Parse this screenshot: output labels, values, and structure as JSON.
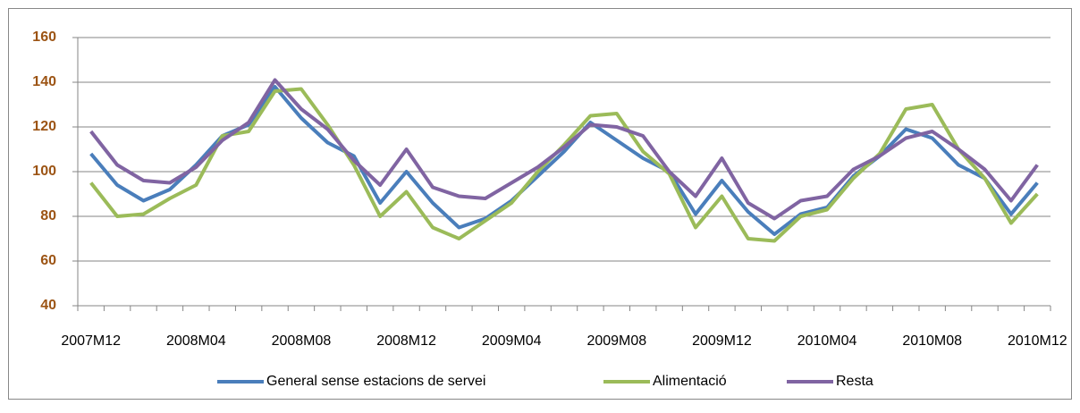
{
  "chart_data": {
    "type": "line",
    "categories": [
      "2007M12",
      null,
      null,
      null,
      "2008M04",
      null,
      null,
      null,
      "2008M08",
      null,
      null,
      null,
      "2008M12",
      null,
      null,
      null,
      "2009M04",
      null,
      null,
      null,
      "2009M08",
      null,
      null,
      null,
      "2009M12",
      null,
      null,
      null,
      "2010M04",
      null,
      null,
      null,
      "2010M08",
      null,
      null,
      null,
      "2010M12"
    ],
    "series": [
      {
        "name": "General sense estacions de servei",
        "color": "#4a7ebb",
        "values": [
          108,
          94,
          87,
          92,
          103,
          116,
          121,
          138,
          124,
          113,
          107,
          86,
          100,
          86,
          75,
          79,
          87,
          98,
          109,
          122,
          114,
          106,
          100,
          81,
          96,
          82,
          72,
          81,
          84,
          98,
          107,
          119,
          115,
          103,
          97,
          81,
          95
        ]
      },
      {
        "name": "Alimentació",
        "color": "#9bbb59",
        "values": [
          95,
          80,
          81,
          88,
          94,
          116,
          118,
          136,
          137,
          121,
          103,
          80,
          91,
          75,
          70,
          78,
          86,
          100,
          112,
          125,
          126,
          109,
          99,
          75,
          89,
          70,
          69,
          80,
          83,
          97,
          108,
          128,
          130,
          110,
          97,
          77,
          90
        ]
      },
      {
        "name": "Resta",
        "color": "#8064a2",
        "values": [
          118,
          103,
          96,
          95,
          102,
          114,
          122,
          141,
          128,
          119,
          105,
          94,
          110,
          93,
          89,
          88,
          95,
          102,
          111,
          121,
          120,
          116,
          100,
          89,
          106,
          86,
          79,
          87,
          89,
          101,
          107,
          115,
          118,
          110,
          101,
          87,
          103
        ]
      }
    ],
    "ylim": [
      40,
      160
    ],
    "yticks": [
      40,
      60,
      80,
      100,
      120,
      140,
      160
    ],
    "grid": true,
    "legend": "bottom"
  }
}
